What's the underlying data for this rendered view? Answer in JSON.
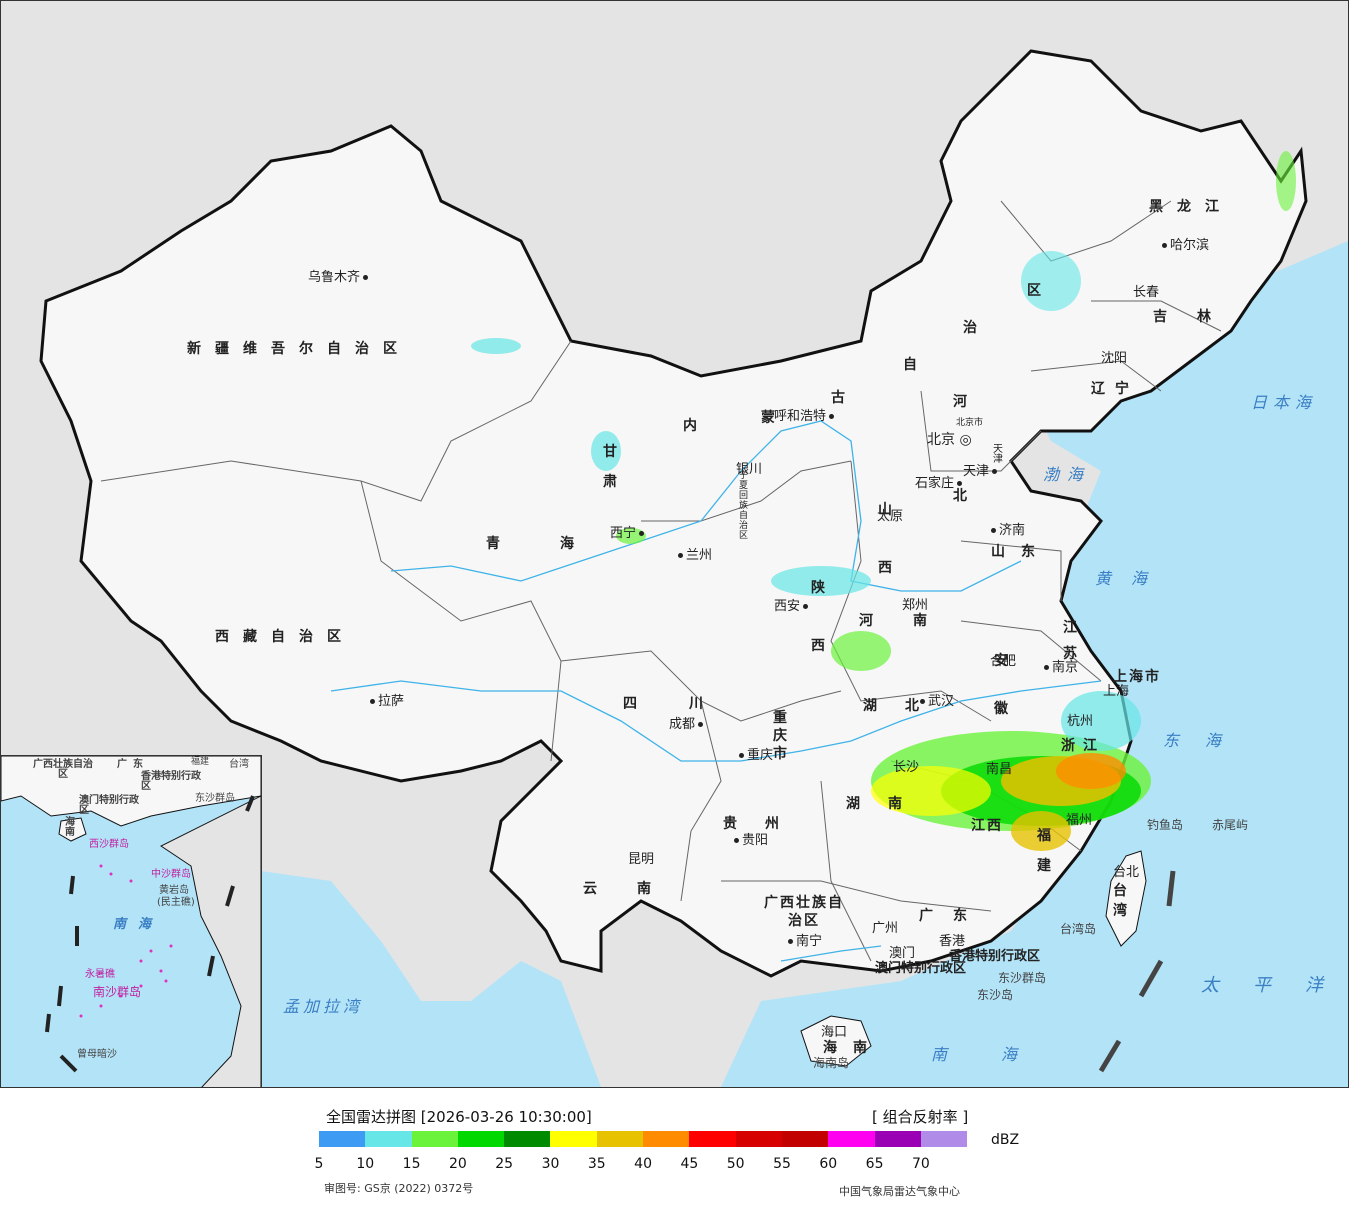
{
  "map": {
    "colors": {
      "sea": "#b3e3f7",
      "land_outside": "#e4e4e4",
      "china": "#f7f7f7",
      "border": "#111111",
      "river": "#3fb3e8"
    },
    "provinces": {
      "xinjiang": "新疆维吾尔自治区",
      "xizang": "西藏自治区",
      "qinghai": "青海",
      "gansu": "甘肃",
      "neimenggu_1": "内",
      "neimenggu_2": "蒙",
      "neimenggu_3": "古",
      "neimenggu_4": "自",
      "neimenggu_5": "治",
      "neimenggu_6": "区",
      "heilongjiang": "黑龙江",
      "jilin": "吉林",
      "liaoning": "辽宁",
      "hebei_1": "河",
      "hebei_2": "北",
      "shanxi": "山西",
      "shandong": "山东",
      "shaanxi": "陕西",
      "henan": "河南",
      "jiangsu": "江苏",
      "anhui": "安徽",
      "hubei": "湖北",
      "sichuan": "四川",
      "chongqing": "重庆市",
      "guizhou": "贵州",
      "yunnan": "云南",
      "hunan": "湖南",
      "jiangxi": "江西",
      "zhejiang": "浙江",
      "fujian": "福建",
      "guangxi": "广西壮族自治区",
      "guangdong": "广东",
      "hainan": "海南",
      "taiwan": "台湾",
      "shanghai": "上海市",
      "ningxia": "宁夏回族自治区",
      "tianjin": "天津"
    },
    "cities": {
      "urumqi": "乌鲁木齐",
      "lhasa": "拉萨",
      "xining": "西宁",
      "lanzhou": "兰州",
      "yinchuan": "银川",
      "hohhot": "呼和浩特",
      "beijing": "北京",
      "beijing_city": "北京市",
      "tianjin": "天津",
      "shijiazhuang": "石家庄",
      "taiyuan": "太原",
      "jinan": "济南",
      "xian": "西安",
      "zhengzhou": "郑州",
      "hefei": "合肥",
      "nanjing": "南京",
      "shanghai": "上海",
      "hangzhou": "杭州",
      "wuhan": "武汉",
      "nanchang": "南昌",
      "changsha": "长沙",
      "fuzhou": "福州",
      "chengdu": "成都",
      "chongqing": "重庆",
      "guiyang": "贵阳",
      "kunming": "昆明",
      "nanning": "南宁",
      "guangzhou": "广州",
      "hongkong": "香港",
      "macau": "澳门",
      "haikou": "海口",
      "taipei": "台北",
      "harbin": "哈尔滨",
      "changchun": "长春",
      "shenyang": "沈阳",
      "hk_sar": "香港特别行政区",
      "macau_sar": "澳门特别行政区"
    },
    "seas": {
      "japan": "日本海",
      "bohai": "渤海",
      "yellow": "黄海",
      "east": "东海",
      "pacific": "太平洋",
      "south": "南海",
      "bengal": "孟加拉湾"
    },
    "islands": {
      "diaoyu": "钓鱼岛",
      "chiwei": "赤尾屿",
      "dongsha_islands": "东沙群岛",
      "dongsha_island": "东沙岛",
      "taiwan_island": "台湾岛",
      "hainan_island": "海南岛"
    },
    "inset": {
      "labels": {
        "guangxi": "广西壮族自治区",
        "guangdong": "广东",
        "fujian": "福建",
        "taiwan": "台湾",
        "hk": "香港特别行政区",
        "macau": "澳门特别行政区",
        "dongsha": "东沙群岛",
        "hainan": "海南",
        "xisha": "西沙群岛",
        "zhongsha": "中沙群岛",
        "huangyan": "黄岩岛",
        "minzhu": "(民主礁)",
        "south_sea": "南海",
        "yongshu": "永暑礁",
        "nansha": "南沙群岛",
        "zengmu": "曾母暗沙"
      }
    }
  },
  "legend": {
    "title": "全国雷达拼图 [2026-03-26 10:30:00]",
    "product": "[ 组合反射率 ]",
    "unit": "dBZ",
    "colors": [
      "#3d9bf3",
      "#66e6e6",
      "#6bf23b",
      "#00d800",
      "#008a00",
      "#ffff00",
      "#e6c200",
      "#ff8c00",
      "#ff0000",
      "#d60000",
      "#c20000",
      "#ff00f0",
      "#9a00b4",
      "#b08ce8"
    ],
    "ticks": [
      "5",
      "10",
      "15",
      "20",
      "25",
      "30",
      "35",
      "40",
      "45",
      "50",
      "55",
      "60",
      "65",
      "70"
    ],
    "approval": "审图号: GS京 (2022) 0372号",
    "source": "中国气象局雷达气象中心"
  }
}
